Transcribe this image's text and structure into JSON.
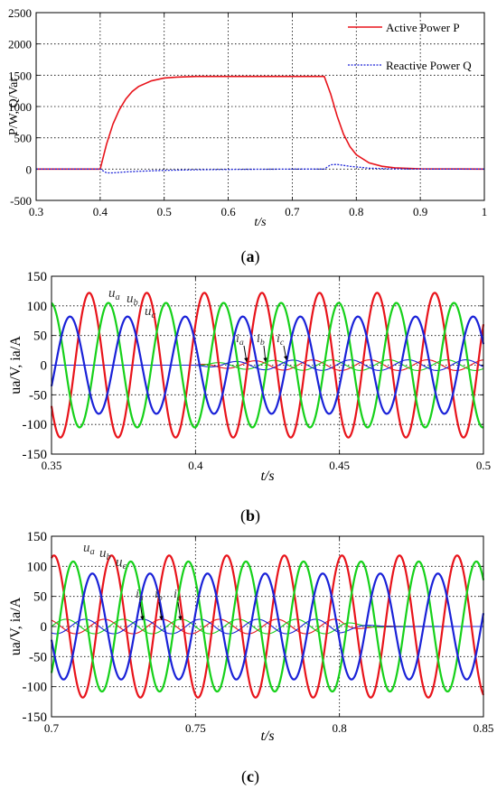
{
  "panels": [
    {
      "caption": "(a)",
      "chart_data": {
        "type": "line",
        "xlabel": "t/s",
        "ylabel": "P/W, Q/Var",
        "xlim": [
          0.3,
          1.0
        ],
        "ylim": [
          -500,
          2500
        ],
        "xticks": [
          "0.3",
          "0.4",
          "0.5",
          "0.6",
          "0.7",
          "0.8",
          "0.9",
          "1"
        ],
        "yticks": [
          "-500",
          "0",
          "500",
          "1000",
          "1500",
          "2000",
          "2500"
        ],
        "grid": true,
        "legend_position": "top-right",
        "series": [
          {
            "name": "Active Power P",
            "color": "#e8141b",
            "style": "solid",
            "x": [
              0.3,
              0.4,
              0.41,
              0.42,
              0.43,
              0.44,
              0.45,
              0.46,
              0.48,
              0.5,
              0.52,
              0.55,
              0.6,
              0.65,
              0.7,
              0.75,
              0.76,
              0.77,
              0.78,
              0.79,
              0.8,
              0.82,
              0.84,
              0.86,
              0.9,
              1.0
            ],
            "y": [
              0,
              0,
              400,
              720,
              950,
              1120,
              1240,
              1320,
              1410,
              1455,
              1470,
              1480,
              1480,
              1480,
              1480,
              1480,
              1200,
              850,
              560,
              360,
              230,
              100,
              45,
              20,
              5,
              0
            ]
          },
          {
            "name": "Reactive Power Q",
            "color": "#1a22d8",
            "style": "dotted",
            "x": [
              0.3,
              0.4,
              0.41,
              0.42,
              0.44,
              0.46,
              0.5,
              0.55,
              0.6,
              0.7,
              0.75,
              0.76,
              0.77,
              0.79,
              0.82,
              0.85,
              0.9,
              1.0
            ],
            "y": [
              0,
              0,
              -60,
              -60,
              -45,
              -35,
              -20,
              -10,
              -5,
              0,
              0,
              70,
              75,
              45,
              15,
              5,
              0,
              0
            ]
          }
        ]
      }
    },
    {
      "caption": "(b)",
      "chart_data": {
        "type": "line",
        "xlabel": "t/s",
        "ylabel": "ua/V, ia/A",
        "xlim": [
          0.35,
          0.5
        ],
        "ylim": [
          -150,
          150
        ],
        "xticks": [
          "0.35",
          "0.4",
          "0.45",
          "0.5"
        ],
        "yticks": [
          "-150",
          "-100",
          "-50",
          "0",
          "50",
          "100",
          "150"
        ],
        "grid": true,
        "voltage_amplitudes": {
          "ua": 122,
          "ub": 105,
          "uc": 82
        },
        "frequency_hz": 50,
        "current_amplitude": 9,
        "current_start": 0.4,
        "annotations": {
          "ua": "u",
          "ua_sub": "a",
          "ub": "u",
          "ub_sub": "b",
          "uc": "u",
          "uc_sub": "c",
          "ia": "i",
          "ia_sub": "a",
          "ib": "i",
          "ib_sub": "b",
          "ic": "i",
          "ic_sub": "c"
        },
        "colors": {
          "a": "#e8141b",
          "b": "#16d11a",
          "c": "#1a22d8"
        }
      }
    },
    {
      "caption": "(c)",
      "chart_data": {
        "type": "line",
        "xlabel": "t/s",
        "ylabel": "ua/V, ia/A",
        "xlim": [
          0.7,
          0.85
        ],
        "ylim": [
          -150,
          150
        ],
        "xticks": [
          "0.7",
          "0.75",
          "0.8",
          "0.85"
        ],
        "yticks": [
          "-150",
          "-100",
          "-50",
          "0",
          "50",
          "100",
          "150"
        ],
        "grid": true,
        "voltage_amplitudes": {
          "ua": 118,
          "ub": 108,
          "uc": 88
        },
        "frequency_hz": 50,
        "current_amplitude": 12,
        "current_end": 0.8,
        "annotations": {
          "ua": "u",
          "ua_sub": "a",
          "ub": "u",
          "ub_sub": "b",
          "uc": "u",
          "uc_sub": "c",
          "ia": "i",
          "ia_sub": "a",
          "ib": "i",
          "ib_sub": "b",
          "ic": "i",
          "ic_sub": "c"
        },
        "colors": {
          "a": "#e8141b",
          "b": "#16d11a",
          "c": "#1a22d8"
        }
      }
    }
  ]
}
